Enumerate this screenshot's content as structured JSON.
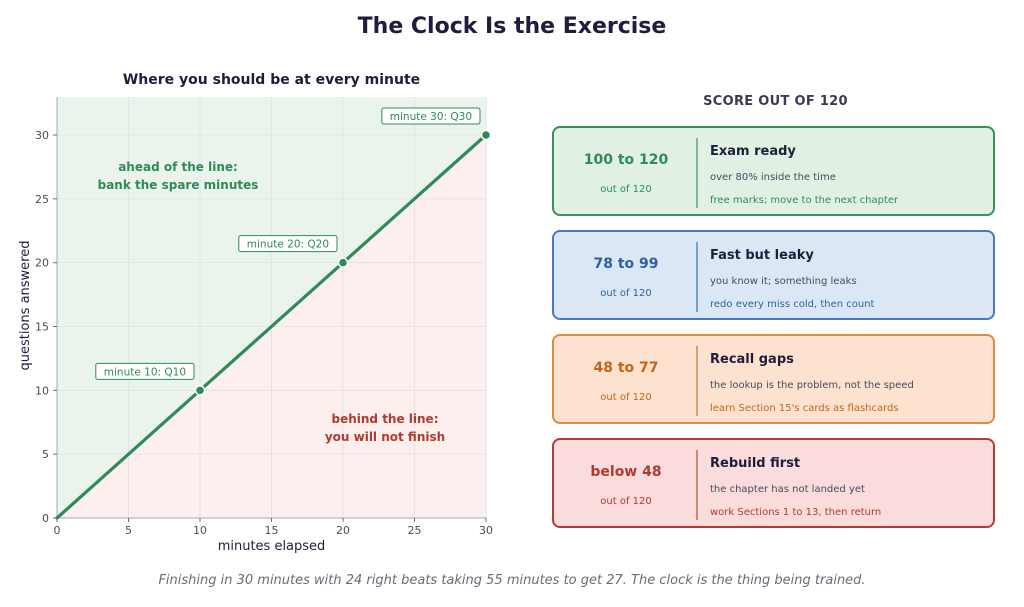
{
  "title": "The Clock Is the Exercise",
  "chart_data": {
    "type": "line",
    "title": "Where you should be at every minute",
    "xlabel": "minutes elapsed",
    "ylabel": "questions answered",
    "xlim": [
      0,
      30
    ],
    "ylim": [
      0,
      30
    ],
    "xticks": [
      0,
      5,
      10,
      15,
      20,
      25,
      30
    ],
    "yticks": [
      0,
      5,
      10,
      15,
      20,
      25,
      30
    ],
    "grid": true,
    "series": [
      {
        "x": [
          0,
          30
        ],
        "y": [
          0,
          30
        ],
        "color": "#2e8b57"
      }
    ],
    "markers": [
      {
        "x": 10,
        "y": 10,
        "label": "minute 10: Q10"
      },
      {
        "x": 20,
        "y": 20,
        "label": "minute 20: Q20"
      },
      {
        "x": 30,
        "y": 30,
        "label": "minute 30: Q30"
      }
    ],
    "annotations": {
      "ahead_line1": "ahead of the line:",
      "ahead_line2": "bank the spare minutes",
      "behind_line1": "behind the line:",
      "behind_line2": "you will not finish"
    },
    "colors": {
      "line": "#2e8b57",
      "ahead_fill": "#eaf4ec",
      "behind_fill": "#fcefee",
      "ahead_text": "#2e8b57",
      "behind_text": "#b03a2e"
    }
  },
  "score": {
    "heading": "SCORE OUT OF 120",
    "bands": [
      {
        "range": "100 to 120",
        "outof": "out of 120",
        "verdict": "Exam ready",
        "desc": "over 80% inside the time",
        "action": "free marks; move to the next chapter",
        "border": "#3a8f5a",
        "fill": "#e0f0e3",
        "accent": "#2e8b57"
      },
      {
        "range": "78 to 99",
        "outof": "out of 120",
        "verdict": "Fast but leaky",
        "desc": "you know it; something leaks",
        "action": "redo every miss cold, then count",
        "border": "#4a78c0",
        "fill": "#dce7f6",
        "accent": "#2f5f9e"
      },
      {
        "range": "48 to 77",
        "outof": "out of 120",
        "verdict": "Recall gaps",
        "desc": "the lookup is the problem, not the speed",
        "action": "learn Section 15's cards as flashcards",
        "border": "#dd8a43",
        "fill": "#fde3cf",
        "accent": "#c0651e"
      },
      {
        "range": "below 48",
        "outof": "out of 120",
        "verdict": "Rebuild first",
        "desc": "the chapter has not landed yet",
        "action": "work Sections 1 to 13, then return",
        "border": "#b83a33",
        "fill": "#fadcdd",
        "accent": "#b03a2e"
      }
    ]
  },
  "footer": "Finishing in 30 minutes with 24 right beats taking 55 minutes to get 27. The clock is the thing being trained."
}
